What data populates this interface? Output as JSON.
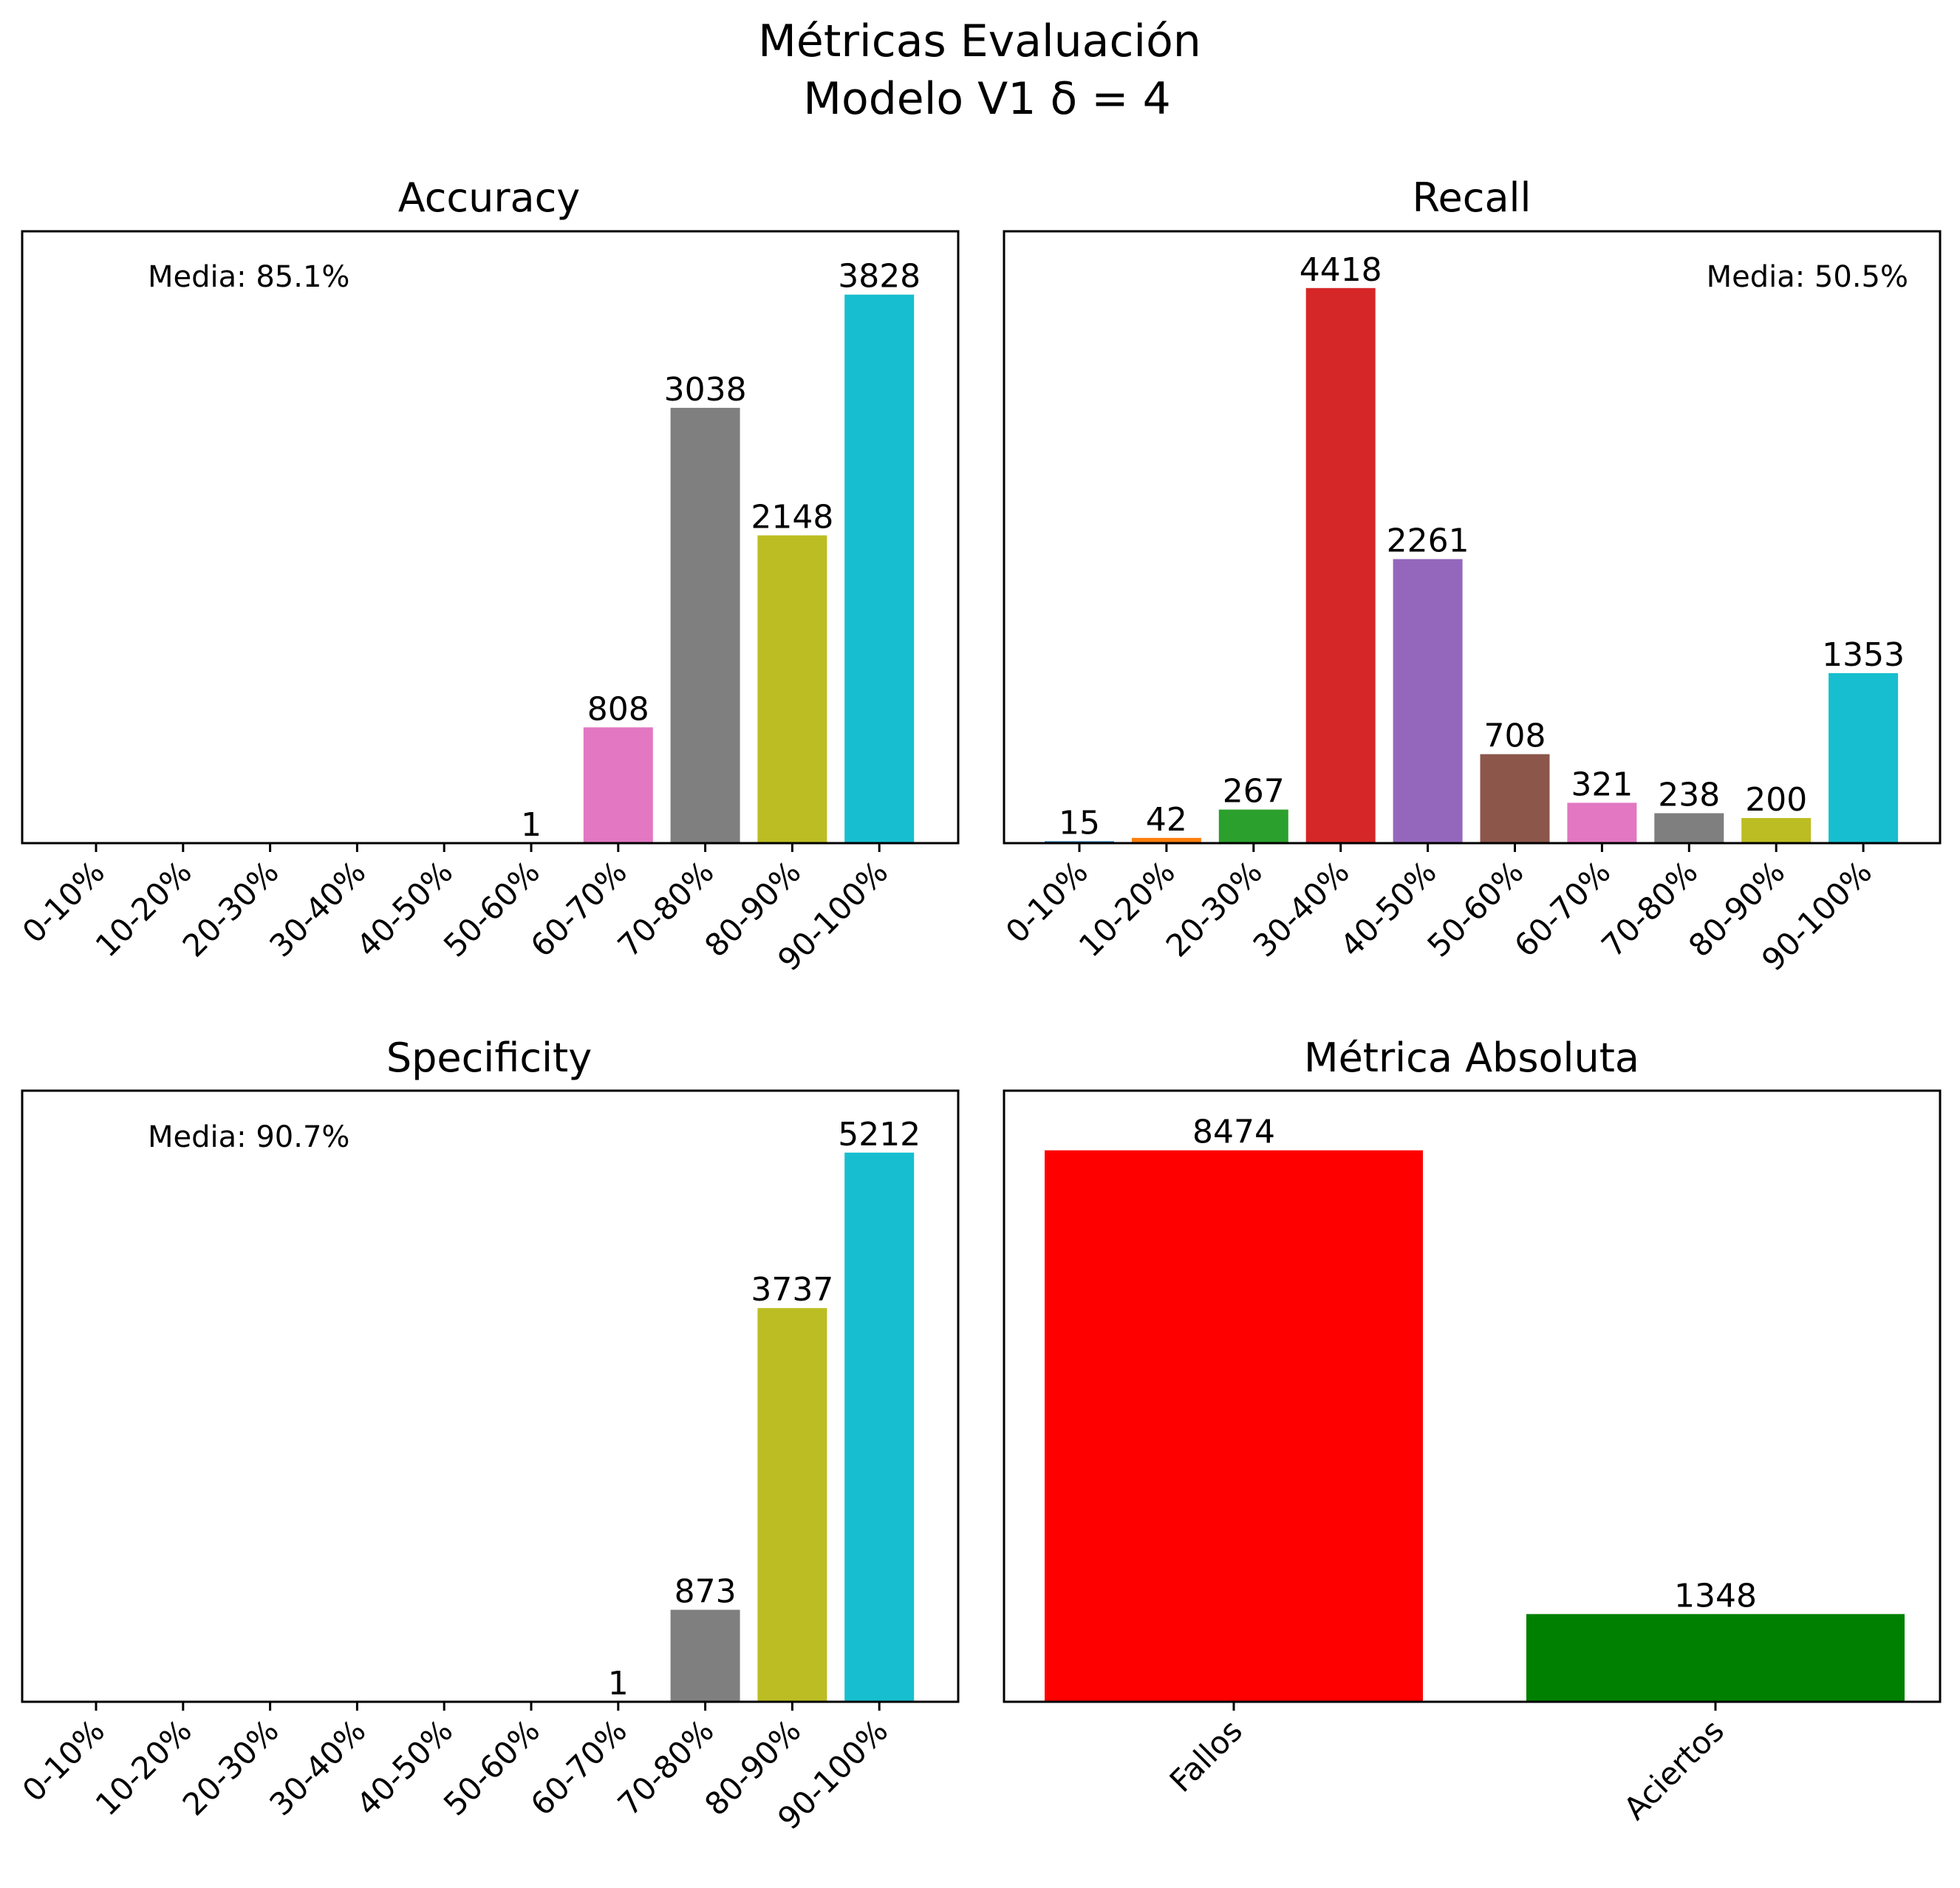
{
  "figure": {
    "title_line1": "Métricas Evaluación",
    "title_line2": "Modelo V1 δ = 4"
  },
  "chart_data": [
    {
      "type": "bar",
      "title": "Accuracy",
      "mean_label": "Media: 85.1%",
      "categories": [
        "0-10%",
        "10-20%",
        "20-30%",
        "30-40%",
        "40-50%",
        "50-60%",
        "60-70%",
        "70-80%",
        "80-90%",
        "90-100%"
      ],
      "values": [
        0,
        0,
        0,
        0,
        0,
        1,
        808,
        3038,
        2148,
        3828
      ],
      "value_labels": [
        "",
        "",
        "",
        "",
        "",
        "1",
        "808",
        "3038",
        "2148",
        "3828"
      ],
      "colors": [
        "#1f77b4",
        "#ff7f0e",
        "#2ca02c",
        "#d62728",
        "#9467bd",
        "#8c564b",
        "#e377c2",
        "#7f7f7f",
        "#bcbd22",
        "#17becf"
      ],
      "ylim": [
        0,
        4270
      ],
      "mean_position": "top-left"
    },
    {
      "type": "bar",
      "title": "Recall",
      "mean_label": "Media: 50.5%",
      "categories": [
        "0-10%",
        "10-20%",
        "20-30%",
        "30-40%",
        "40-50%",
        "50-60%",
        "60-70%",
        "70-80%",
        "80-90%",
        "90-100%"
      ],
      "values": [
        15,
        42,
        267,
        4418,
        2261,
        708,
        321,
        238,
        200,
        1353
      ],
      "value_labels": [
        "15",
        "42",
        "267",
        "4418",
        "2261",
        "708",
        "321",
        "238",
        "200",
        "1353"
      ],
      "colors": [
        "#1f77b4",
        "#ff7f0e",
        "#2ca02c",
        "#d62728",
        "#9467bd",
        "#8c564b",
        "#e377c2",
        "#7f7f7f",
        "#bcbd22",
        "#17becf"
      ],
      "ylim": [
        0,
        4870
      ],
      "mean_position": "top-right"
    },
    {
      "type": "bar",
      "title": "Specificity",
      "mean_label": "Media: 90.7%",
      "categories": [
        "0-10%",
        "10-20%",
        "20-30%",
        "30-40%",
        "40-50%",
        "50-60%",
        "60-70%",
        "70-80%",
        "80-90%",
        "90-100%"
      ],
      "values": [
        0,
        0,
        0,
        0,
        0,
        0,
        1,
        873,
        3737,
        5212
      ],
      "value_labels": [
        "",
        "",
        "",
        "",
        "",
        "",
        "1",
        "873",
        "3737",
        "5212"
      ],
      "colors": [
        "#1f77b4",
        "#ff7f0e",
        "#2ca02c",
        "#d62728",
        "#9467bd",
        "#8c564b",
        "#e377c2",
        "#7f7f7f",
        "#bcbd22",
        "#17becf"
      ],
      "ylim": [
        0,
        5800
      ],
      "mean_position": "top-left"
    },
    {
      "type": "bar",
      "title": "Métrica Absoluta",
      "mean_label": "",
      "categories": [
        "Fallos",
        "Aciertos"
      ],
      "values": [
        8474,
        1348
      ],
      "value_labels": [
        "8474",
        "1348"
      ],
      "colors": [
        "#ff0000",
        "#008000"
      ],
      "ylim": [
        0,
        9390
      ],
      "mean_position": ""
    }
  ]
}
